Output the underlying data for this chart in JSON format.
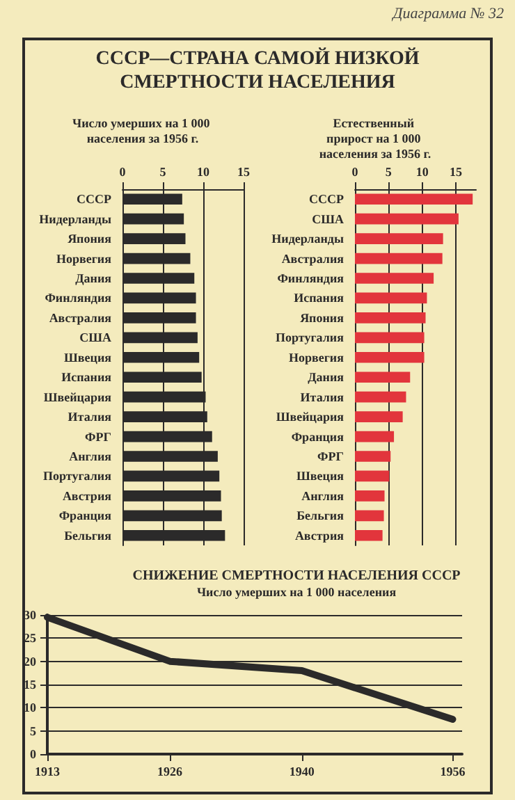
{
  "chart_data": [
    {
      "type": "bar",
      "orientation": "horizontal",
      "title": "СССР—СТРАНА САМОЙ НИЗКОЙ СМЕРТНОСТИ НАСЕЛЕНИЯ",
      "subtitle": "Число умерших на 1 000 населения за 1956 г.",
      "annotations": [
        "Диаграмма № 32"
      ],
      "categories": [
        "СССР",
        "Нидерланды",
        "Япония",
        "Норвегия",
        "Дания",
        "Финляндия",
        "Австралия",
        "США",
        "Швеция",
        "Испания",
        "Швейцария",
        "Италия",
        "ФРГ",
        "Англия",
        "Португалия",
        "Австрия",
        "Франция",
        "Бельгия"
      ],
      "values": [
        7.4,
        7.6,
        7.8,
        8.4,
        8.9,
        9.1,
        9.1,
        9.3,
        9.5,
        9.8,
        10.3,
        10.5,
        11.1,
        11.8,
        12.0,
        12.2,
        12.3,
        12.7
      ],
      "color": "#2b2a2a",
      "xlim": [
        0,
        15
      ],
      "xticks": [
        0,
        5,
        10,
        15
      ],
      "grid": "x"
    },
    {
      "type": "bar",
      "orientation": "horizontal",
      "subtitle": "Естественный прирост на 1 000 населения за 1956 г.",
      "categories": [
        "СССР",
        "США",
        "Нидерланды",
        "Австралия",
        "Финляндия",
        "Испания",
        "Япония",
        "Португалия",
        "Норвегия",
        "Дания",
        "Италия",
        "Швейцария",
        "Франция",
        "ФРГ",
        "Швеция",
        "Англия",
        "Бельгия",
        "Австрия"
      ],
      "values": [
        17.5,
        15.4,
        13.1,
        13.0,
        11.7,
        10.7,
        10.5,
        10.3,
        10.3,
        8.2,
        7.6,
        7.1,
        5.8,
        5.3,
        5.1,
        4.4,
        4.3,
        4.1
      ],
      "color": "#e2353c",
      "xlim": [
        0,
        18
      ],
      "xticks": [
        0,
        5,
        10,
        15
      ],
      "grid": "x"
    },
    {
      "type": "line",
      "title": "СНИЖЕНИЕ СМЕРТНОСТИ НАСЕЛЕНИЯ СССР",
      "subtitle": "Число умерших на 1 000 населения",
      "x": [
        1913,
        1926,
        1940,
        1956
      ],
      "values": [
        29.5,
        20,
        18,
        7.5
      ],
      "color": "#2b2a2a",
      "marker": "none",
      "line_style": "solid",
      "xlim": [
        1913,
        1957
      ],
      "xticks": [
        1913,
        1926,
        1940,
        1956
      ],
      "ylim": [
        0,
        30
      ],
      "yticks": [
        0,
        5,
        10,
        15,
        20,
        25,
        30
      ],
      "grid": "y"
    }
  ]
}
